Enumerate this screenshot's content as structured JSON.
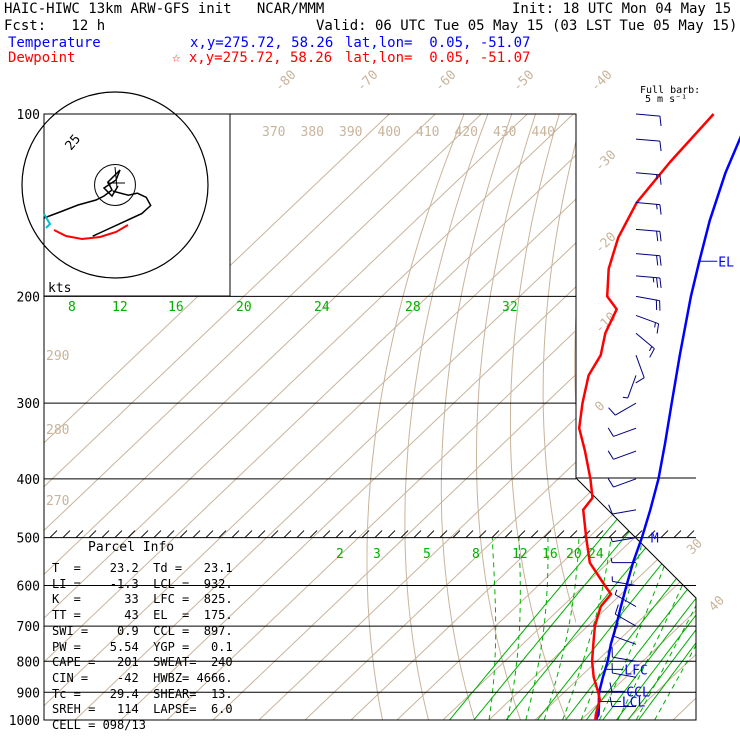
{
  "header": {
    "line1_left": "HAIC-HIWC 13km ARW-GFS init   NCAR/MMM",
    "line1_right": "Init: 18 UTC Mon 04 May 15",
    "line2_left": "Fcst:   12 h",
    "line2_right": "Valid: 06 UTC Tue 05 May 15 (03 LST Tue 05 May 15)",
    "temp_label": "Temperature",
    "temp_xy": "x,y=275.72, 58.26",
    "temp_latlon": "lat,lon=  0.05, -51.07",
    "dew_label": "Dewpoint",
    "dew_xy": "☆ x,y=275.72, 58.26",
    "dew_latlon": "lat,lon=  0.05, -51.07",
    "barb_title": "Full barb:",
    "barb_unit": "5 m s⁻¹"
  },
  "colors": {
    "temperature": "#0000ff",
    "dewpoint": "#ff0000",
    "isotherm": "#c8b49b",
    "mixing": "#00b000",
    "wind_barb": "#000080"
  },
  "chart_data": {
    "type": "skew-t",
    "pressure_levels": [
      100,
      200,
      300,
      400,
      500,
      600,
      700,
      800,
      900,
      1000
    ],
    "pressure_labels": [
      "100",
      "200",
      "300",
      "400",
      "500",
      "600",
      "700",
      "800",
      "900",
      "1000"
    ],
    "isotherm_labels": [
      "-80",
      "-70",
      "-60",
      "-50",
      "-40",
      "-30",
      "-20",
      "-10",
      "0",
      "30",
      "40"
    ],
    "theta_labels_top": [
      "370",
      "380",
      "390",
      "400",
      "410",
      "420",
      "430",
      "440"
    ],
    "theta_labels_left": [
      "290",
      "280",
      "270"
    ],
    "mixing_ratio_labels_upper": [
      "8",
      "12",
      "16",
      "20",
      "24",
      "28",
      "32"
    ],
    "mixing_ratio_labels_lower": [
      "2",
      "3",
      "5",
      "8",
      "12",
      "16",
      "20",
      "24"
    ],
    "hodograph_ring_label": "25",
    "hodograph_unit": "kts",
    "level_markers": {
      "el": {
        "label": "EL",
        "p": 175
      },
      "m": {
        "label": "M",
        "p": 500
      },
      "lfc": {
        "label": "LFC",
        "p": 825
      },
      "ccl": {
        "label": "CCL",
        "p": 897
      },
      "lcl": {
        "label": "LCL",
        "p": 932
      }
    },
    "series": [
      {
        "name": "Temperature",
        "points": [
          [
            1000,
            23.2
          ],
          [
            980,
            22.6
          ],
          [
            950,
            20.8
          ],
          [
            925,
            19.2
          ],
          [
            900,
            17.6
          ],
          [
            850,
            15.0
          ],
          [
            800,
            12.4
          ],
          [
            750,
            9.2
          ],
          [
            700,
            6.2
          ],
          [
            650,
            2.8
          ],
          [
            600,
            -0.8
          ],
          [
            550,
            -4.6
          ],
          [
            500,
            -8.4
          ],
          [
            450,
            -12.9
          ],
          [
            400,
            -18.2
          ],
          [
            350,
            -24.8
          ],
          [
            300,
            -32.6
          ],
          [
            250,
            -41.8
          ],
          [
            200,
            -52.8
          ],
          [
            175,
            -59.0
          ],
          [
            150,
            -66.0
          ],
          [
            125,
            -73.5
          ],
          [
            100,
            -81.5
          ]
        ]
      },
      {
        "name": "Dewpoint",
        "points": [
          [
            1000,
            23.1
          ],
          [
            980,
            22.0
          ],
          [
            950,
            20.6
          ],
          [
            925,
            19.4
          ],
          [
            900,
            17.4
          ],
          [
            850,
            13.0
          ],
          [
            800,
            9.0
          ],
          [
            750,
            5.4
          ],
          [
            700,
            1.6
          ],
          [
            650,
            -1.6
          ],
          [
            620,
            -2.2
          ],
          [
            600,
            -5.5
          ],
          [
            550,
            -14.0
          ],
          [
            500,
            -20.5
          ],
          [
            450,
            -27.5
          ],
          [
            430,
            -28.2
          ],
          [
            400,
            -33.0
          ],
          [
            360,
            -40.5
          ],
          [
            330,
            -47.0
          ],
          [
            300,
            -52.0
          ],
          [
            270,
            -57.0
          ],
          [
            250,
            -59.0
          ],
          [
            230,
            -63.0
          ],
          [
            210,
            -66.0
          ],
          [
            200,
            -71.0
          ],
          [
            180,
            -77.0
          ],
          [
            160,
            -82.0
          ],
          [
            140,
            -86.0
          ],
          [
            120,
            -88.0
          ],
          [
            100,
            -89.5
          ]
        ]
      }
    ],
    "hodograph": {
      "ring_max_kts": 25,
      "wind_trace": [
        [
          -1,
          -3
        ],
        [
          6,
          -5
        ],
        [
          10,
          -4
        ],
        [
          14,
          -6
        ],
        [
          16,
          -10
        ],
        [
          12,
          -14
        ],
        [
          4,
          -18
        ],
        [
          -4,
          -22
        ],
        [
          -10,
          -25
        ]
      ],
      "red_trace": [
        [
          -10,
          -25
        ],
        [
          -6,
          -26
        ],
        [
          0,
          -28
        ],
        [
          6,
          -27
        ],
        [
          12,
          -25
        ],
        [
          16,
          -23
        ],
        [
          20,
          -19
        ]
      ]
    },
    "wind_barbs": [
      {
        "p": 100,
        "spd": 8,
        "dir": 95
      },
      {
        "p": 110,
        "spd": 10,
        "dir": 95
      },
      {
        "p": 125,
        "spd": 12,
        "dir": 95
      },
      {
        "p": 140,
        "spd": 14,
        "dir": 95
      },
      {
        "p": 155,
        "spd": 16,
        "dir": 95
      },
      {
        "p": 170,
        "spd": 18,
        "dir": 95
      },
      {
        "p": 185,
        "spd": 22,
        "dir": 95
      },
      {
        "p": 200,
        "spd": 18,
        "dir": 100
      },
      {
        "p": 215,
        "spd": 15,
        "dir": 110
      },
      {
        "p": 230,
        "spd": 12,
        "dir": 130
      },
      {
        "p": 250,
        "spd": 9,
        "dir": 160
      },
      {
        "p": 270,
        "spd": 7,
        "dir": 200
      },
      {
        "p": 300,
        "spd": 8,
        "dir": 240
      },
      {
        "p": 330,
        "spd": 8,
        "dir": 250
      },
      {
        "p": 360,
        "spd": 9,
        "dir": 250
      },
      {
        "p": 400,
        "spd": 9,
        "dir": 250
      },
      {
        "p": 450,
        "spd": 8,
        "dir": 260
      },
      {
        "p": 500,
        "spd": 6,
        "dir": 260
      },
      {
        "p": 550,
        "spd": 6,
        "dir": 270
      },
      {
        "p": 600,
        "spd": 6,
        "dir": 280
      },
      {
        "p": 650,
        "spd": 7,
        "dir": 300
      },
      {
        "p": 700,
        "spd": 8,
        "dir": 300
      },
      {
        "p": 750,
        "spd": 9,
        "dir": 290
      },
      {
        "p": 800,
        "spd": 10,
        "dir": 280
      },
      {
        "p": 850,
        "spd": 11,
        "dir": 280
      },
      {
        "p": 900,
        "spd": 11,
        "dir": 270
      },
      {
        "p": 950,
        "spd": 9,
        "dir": 270
      }
    ]
  },
  "parcel_info": {
    "title": "Parcel Info",
    "rows": [
      "T  =    23.2  Td =   23.1",
      "LI =    -1.3  LCL =  932.",
      "K  =      33  LFC =  825.",
      "TT =      43  EL  =  175.",
      "SWI =    0.9  CCL =  897.",
      "PW =    5.54  YGP =   0.1",
      "CAPE =   201  SWEAT=  240",
      "CIN =    -42  HWBZ= 4666.",
      "Tc =    29.4  SHEAR=  13.",
      "SREH =   114  LAPSE=  6.0",
      "CELL = 098/13"
    ]
  }
}
